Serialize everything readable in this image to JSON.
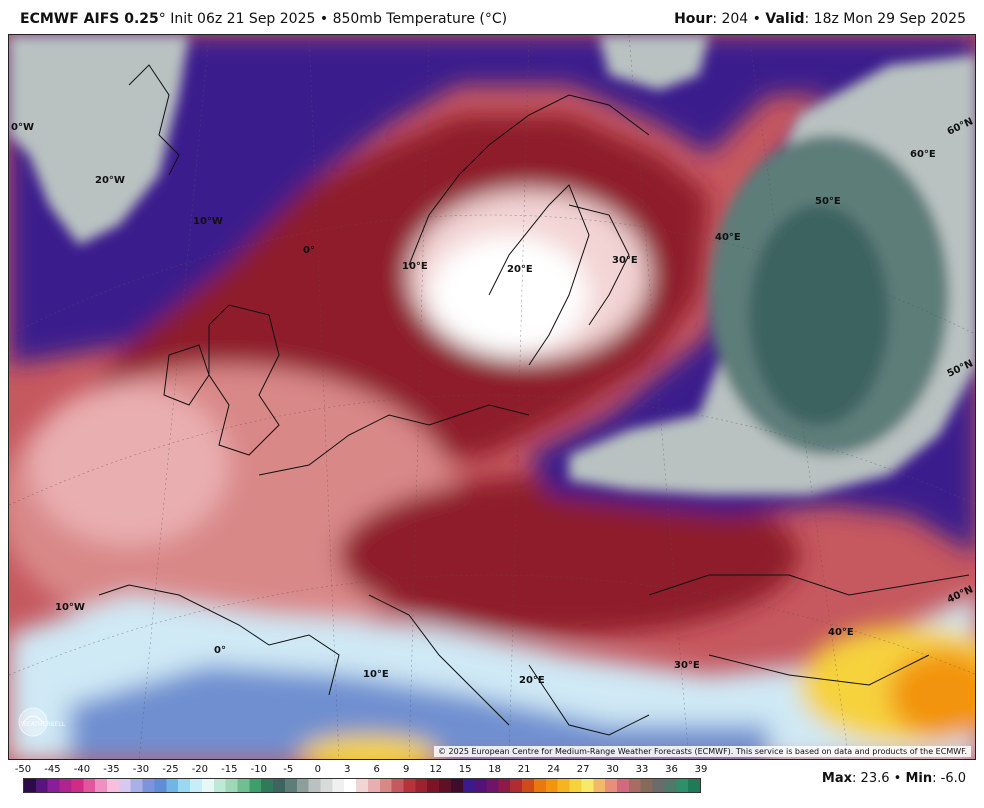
{
  "header": {
    "model": "ECMWF AIFS 0.25",
    "degree": "°",
    "init": "Init 06z 21 Sep 2025",
    "sep": "•",
    "product": "850mb Temperature (°C)",
    "hour_label": "Hour",
    "hour_value": ": 204",
    "valid_label": "Valid",
    "valid_value": ": 18z Mon 29 Sep 2025"
  },
  "map": {
    "longitude_labels": [
      "0°W",
      "20°W",
      "10°W",
      "0°",
      "10°E",
      "20°E",
      "30°E",
      "40°E",
      "50°E",
      "60°E",
      "10°W",
      "0°",
      "10°E",
      "20°E",
      "30°E",
      "40°E"
    ],
    "latitude_labels": [
      "60°N",
      "50°N",
      "40°N"
    ],
    "copyright": "© 2025 European Centre for Medium-Range Weather Forecasts (ECMWF). This service is based on data and products of the ECMWF.",
    "watermark_text": "WEATHERBELL",
    "palette": {
      "deep_purple": "#3a1a8c",
      "dark_red": "#8e1a2a",
      "red": "#b8323c",
      "rose": "#d98888",
      "pale_pink": "#f3d4d4",
      "light_blue": "#cfe9f5",
      "blue": "#6f8fd0",
      "yellow": "#f6d23c",
      "orange": "#f29410",
      "cold_teal": "#3e6460",
      "grey": "#b9c2c1"
    }
  },
  "legend": {
    "ticks": [
      "-50",
      "-45",
      "-40",
      "-35",
      "-30",
      "-25",
      "-20",
      "-15",
      "-10",
      "-5",
      "0",
      "3",
      "6",
      "9",
      "12",
      "15",
      "18",
      "21",
      "24",
      "27",
      "30",
      "33",
      "36",
      "39"
    ],
    "colors": [
      "#2d0b4a",
      "#5a1480",
      "#8a1d9a",
      "#b0248f",
      "#d02c86",
      "#e455a0",
      "#f08fc2",
      "#f6bfdb",
      "#d6c8f0",
      "#a9b0e8",
      "#7c94dc",
      "#5f8dd6",
      "#6fb6e4",
      "#9ad7f0",
      "#c7eef8",
      "#e6f7f5",
      "#bde9d8",
      "#9fd7b8",
      "#6fbf93",
      "#3f9f6b",
      "#2f7a58",
      "#3e6460",
      "#5d7d79",
      "#8d9e9b",
      "#b9c2c1",
      "#d6dbda",
      "#f0f0f0",
      "#ffffff",
      "#f3d4d4",
      "#e9aeb0",
      "#d98888",
      "#c6585f",
      "#b8323c",
      "#9c2230",
      "#7d1426",
      "#5f1024",
      "#3f0c2e",
      "#3a1a8c",
      "#52127a",
      "#701468",
      "#8e1a4a",
      "#b02c30",
      "#d04a1c",
      "#e8780f",
      "#f29410",
      "#f6b520",
      "#f6d23c",
      "#f9e96a",
      "#f3b96a",
      "#e88f7c",
      "#cf6b7c",
      "#a86c63",
      "#866a5a",
      "#6b6b6b",
      "#4f7a6a",
      "#2f8f6a",
      "#1f7a58"
    ]
  },
  "stats": {
    "max_label": "Max",
    "max_value": ": 23.6",
    "sep": "•",
    "min_label": "Min",
    "min_value": ": -6.0"
  }
}
